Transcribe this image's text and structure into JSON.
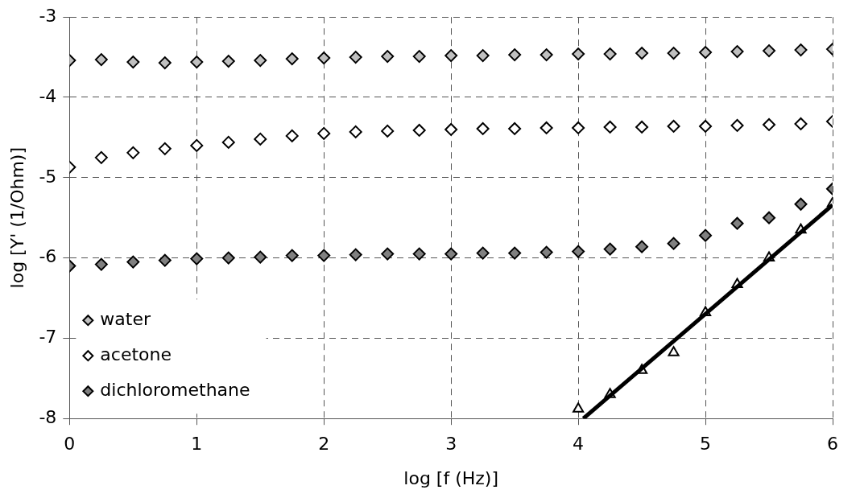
{
  "chart_data": {
    "type": "scatter",
    "xlabel": "log [f (Hz)]",
    "ylabel": "log [Y' (1/Ohm)]",
    "xlim": [
      0,
      6
    ],
    "xticks": [
      0,
      1,
      2,
      3,
      4,
      5,
      6
    ],
    "ylim": [
      -8,
      -3
    ],
    "yticks": [
      -8,
      -7,
      -6,
      -5,
      -4,
      -3
    ],
    "grid": true,
    "legend": "bottom left",
    "marker": "diamond",
    "x": [
      0,
      0.25,
      0.5,
      0.75,
      1,
      1.25,
      1.5,
      1.75,
      2,
      2.25,
      2.5,
      2.75,
      3,
      3.25,
      3.5,
      3.75,
      4,
      4.25,
      4.5,
      4.75,
      5,
      5.25,
      5.5,
      5.75,
      6
    ],
    "series": [
      {
        "name": "water",
        "color": "#c0c0c0",
        "values": [
          -3.54,
          -3.53,
          -3.56,
          -3.57,
          -3.56,
          -3.55,
          -3.54,
          -3.52,
          -3.51,
          -3.5,
          -3.49,
          -3.49,
          -3.48,
          -3.48,
          -3.47,
          -3.47,
          -3.46,
          -3.46,
          -3.45,
          -3.45,
          -3.44,
          -3.43,
          -3.42,
          -3.41,
          -3.4
        ]
      },
      {
        "name": "acetone",
        "color": "#ffffff",
        "values": [
          -4.87,
          -4.75,
          -4.69,
          -4.64,
          -4.6,
          -4.56,
          -4.52,
          -4.48,
          -4.45,
          -4.43,
          -4.42,
          -4.41,
          -4.4,
          -4.39,
          -4.39,
          -4.38,
          -4.38,
          -4.37,
          -4.37,
          -4.36,
          -4.36,
          -4.35,
          -4.34,
          -4.33,
          -4.3
        ]
      },
      {
        "name": "dichloromethane",
        "color": "#808080",
        "values": [
          -6.1,
          -6.08,
          -6.05,
          -6.03,
          -6.01,
          -6.0,
          -5.99,
          -5.97,
          -5.97,
          -5.96,
          -5.95,
          -5.95,
          -5.95,
          -5.94,
          -5.94,
          -5.93,
          -5.92,
          -5.89,
          -5.86,
          -5.82,
          -5.72,
          -5.57,
          -5.5,
          -5.33,
          -5.14
        ]
      },
      {
        "type": "line",
        "color": "#000000",
        "line_style": "solid",
        "marker": "none",
        "x": [
          4.04,
          6
        ],
        "values": [
          -8.0,
          -5.34
        ]
      },
      {
        "color": "#ffffff",
        "marker": "triangle",
        "x": [
          4,
          4.25,
          4.5,
          4.75,
          5,
          5.25,
          5.5,
          5.75,
          6
        ],
        "values": [
          -7.88,
          -7.7,
          -7.4,
          -7.18,
          -6.68,
          -6.33,
          -6.0,
          -5.65,
          -5.32
        ]
      }
    ]
  }
}
